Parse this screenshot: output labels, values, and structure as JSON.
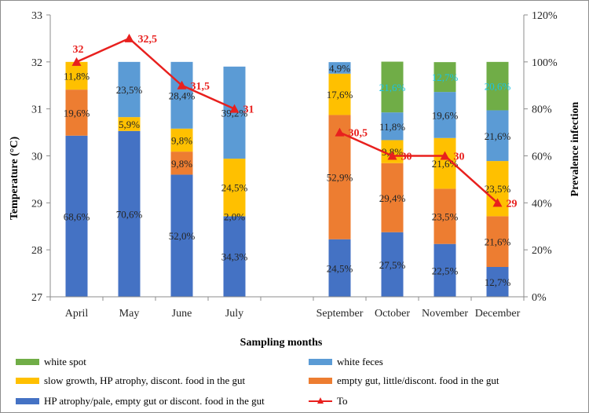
{
  "chart_data": {
    "type": "bar",
    "xlabel": "Sampling months",
    "ylabel_left": "Temperature (°C)",
    "ylabel_right": "Prevalence infection",
    "y_left_range": [
      27,
      33
    ],
    "y_left_ticks": [
      "27",
      "28",
      "29",
      "30",
      "31",
      "32",
      "33"
    ],
    "y_right_range": [
      0,
      120
    ],
    "y_right_ticks": [
      "0%",
      "20%",
      "40%",
      "60%",
      "80%",
      "100%",
      "120%"
    ],
    "grid": false,
    "legend_position": "bottom",
    "categories": [
      "April",
      "May",
      "June",
      "July",
      "",
      "September",
      "October",
      "November",
      "December"
    ],
    "series": [
      {
        "name": "HP atrophy/pale, empty gut or discont. food in the gut",
        "color": "#4472c4",
        "values": [
          68.6,
          70.6,
          52.0,
          34.3,
          null,
          24.5,
          27.5,
          22.5,
          12.7
        ],
        "labels": [
          "68,6%",
          "70,6%",
          "52,0%",
          "34,3%",
          "",
          "24,5%",
          "27,5%",
          "22,5%",
          "12,7%"
        ]
      },
      {
        "name": "empty gut, little/discont. food in the gut",
        "color": "#ed7d31",
        "values": [
          19.6,
          0,
          9.8,
          0,
          null,
          52.9,
          29.4,
          23.5,
          21.6
        ],
        "labels": [
          "19,6%",
          "",
          "9,8%",
          "",
          "",
          "52,9%",
          "29,4%",
          "23,5%",
          "21,6%"
        ]
      },
      {
        "name": "slow growth, HP atrophy, discont. food in the gut",
        "color": "#ffc000",
        "values": [
          11.8,
          5.9,
          9.8,
          24.5,
          null,
          17.6,
          9.8,
          21.6,
          23.5
        ],
        "labels": [
          "11,8%",
          "5,9%",
          "9,8%",
          "24,5%",
          "",
          "17,6%",
          "9,8%",
          "21,6%",
          "23,5%"
        ]
      },
      {
        "name": "white feces",
        "color": "#5b9bd5",
        "values": [
          0,
          23.5,
          28.4,
          39.2,
          null,
          4.9,
          11.8,
          19.6,
          21.6
        ],
        "labels": [
          "",
          "23,5%",
          "28,4%",
          "39,2%",
          "",
          "4,9%",
          "11,8%",
          "19,6%",
          "21,6%"
        ]
      },
      {
        "name": "white spot",
        "color": "#70ad47",
        "values": [
          0,
          0,
          0,
          0,
          null,
          0,
          21.6,
          12.7,
          20.6
        ],
        "labels": [
          "",
          "",
          "",
          "",
          "",
          "",
          "21,6%",
          "12,7%",
          "20,6%"
        ]
      }
    ],
    "extra_labels": [
      {
        "category": "July",
        "text": "2,0%"
      }
    ],
    "line": {
      "name": "To",
      "color": "#e8201e",
      "values": [
        32,
        32.5,
        31.5,
        31,
        null,
        30.5,
        30,
        30,
        29
      ],
      "labels": [
        "32",
        "32,5",
        "31,5",
        "31",
        "",
        "30,5",
        "30",
        "30",
        "29"
      ]
    }
  }
}
